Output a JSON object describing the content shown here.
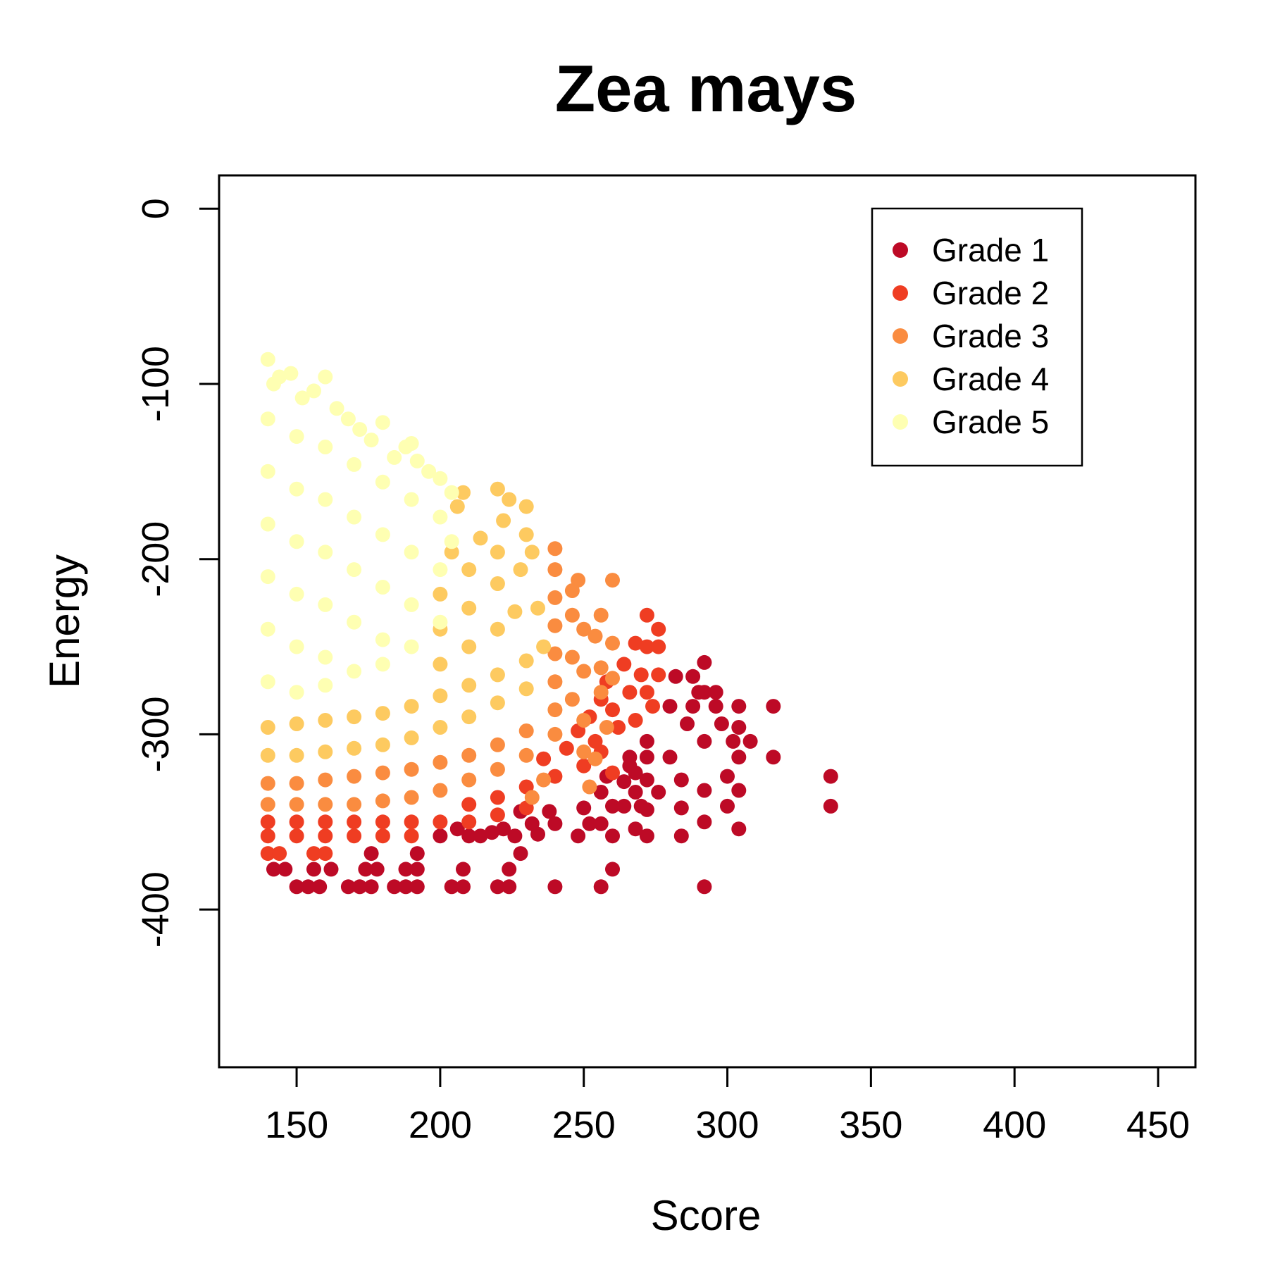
{
  "chart_data": {
    "type": "scatter",
    "title": "Zea mays",
    "xlabel": "Score",
    "ylabel": "Energy",
    "xlim": [
      123,
      463
    ],
    "ylim": [
      -490,
      19
    ],
    "xticks": [
      150,
      200,
      250,
      300,
      350,
      400,
      450
    ],
    "yticks": [
      0,
      -100,
      -200,
      -300,
      -400
    ],
    "grid": false,
    "legend_position": "top-right",
    "series": [
      {
        "name": "Grade 1",
        "color": "#bd0a26",
        "points": [
          [
            142,
            -377
          ],
          [
            146,
            -377
          ],
          [
            150,
            -387
          ],
          [
            154,
            -387
          ],
          [
            156,
            -377
          ],
          [
            158,
            -387
          ],
          [
            162,
            -377
          ],
          [
            168,
            -387
          ],
          [
            172,
            -387
          ],
          [
            174,
            -377
          ],
          [
            176,
            -387
          ],
          [
            178,
            -377
          ],
          [
            176,
            -368
          ],
          [
            184,
            -387
          ],
          [
            188,
            -387
          ],
          [
            188,
            -377
          ],
          [
            192,
            -387
          ],
          [
            192,
            -377
          ],
          [
            192,
            -368
          ],
          [
            204,
            -387
          ],
          [
            208,
            -387
          ],
          [
            208,
            -377
          ],
          [
            220,
            -387
          ],
          [
            224,
            -387
          ],
          [
            224,
            -377
          ],
          [
            228,
            -368
          ],
          [
            240,
            -387
          ],
          [
            256,
            -387
          ],
          [
            260,
            -377
          ],
          [
            200,
            -358
          ],
          [
            206,
            -354
          ],
          [
            210,
            -358
          ],
          [
            214,
            -358
          ],
          [
            218,
            -356
          ],
          [
            222,
            -354
          ],
          [
            226,
            -358
          ],
          [
            228,
            -344
          ],
          [
            232,
            -351
          ],
          [
            234,
            -357
          ],
          [
            238,
            -344
          ],
          [
            240,
            -351
          ],
          [
            248,
            -358
          ],
          [
            250,
            -342
          ],
          [
            252,
            -351
          ],
          [
            256,
            -351
          ],
          [
            256,
            -333
          ],
          [
            258,
            -324
          ],
          [
            260,
            -341
          ],
          [
            260,
            -358
          ],
          [
            264,
            -327
          ],
          [
            264,
            -341
          ],
          [
            266,
            -318
          ],
          [
            266,
            -313
          ],
          [
            268,
            -322
          ],
          [
            268,
            -333
          ],
          [
            270,
            -341
          ],
          [
            272,
            -326
          ],
          [
            272,
            -313
          ],
          [
            272,
            -304
          ],
          [
            272,
            -343
          ],
          [
            272,
            -358
          ],
          [
            276,
            -333
          ],
          [
            268,
            -354
          ],
          [
            280,
            -313
          ],
          [
            280,
            -284
          ],
          [
            282,
            -267
          ],
          [
            284,
            -326
          ],
          [
            284,
            -342
          ],
          [
            284,
            -358
          ],
          [
            286,
            -294
          ],
          [
            288,
            -284
          ],
          [
            288,
            -267
          ],
          [
            290,
            -276
          ],
          [
            292,
            -259
          ],
          [
            292,
            -276
          ],
          [
            292,
            -304
          ],
          [
            292,
            -332
          ],
          [
            292,
            -350
          ],
          [
            292,
            -387
          ],
          [
            296,
            -276
          ],
          [
            296,
            -284
          ],
          [
            298,
            -294
          ],
          [
            300,
            -324
          ],
          [
            300,
            -341
          ],
          [
            302,
            -304
          ],
          [
            304,
            -284
          ],
          [
            304,
            -296
          ],
          [
            304,
            -313
          ],
          [
            304,
            -332
          ],
          [
            304,
            -354
          ],
          [
            308,
            -304
          ],
          [
            316,
            -284
          ],
          [
            316,
            -313
          ],
          [
            336,
            -324
          ],
          [
            336,
            -341
          ]
        ]
      },
      {
        "name": "Grade 2",
        "color": "#ef3d22",
        "points": [
          [
            140,
            -358
          ],
          [
            150,
            -358
          ],
          [
            160,
            -358
          ],
          [
            170,
            -358
          ],
          [
            180,
            -358
          ],
          [
            190,
            -358
          ],
          [
            140,
            -350
          ],
          [
            150,
            -350
          ],
          [
            160,
            -350
          ],
          [
            170,
            -350
          ],
          [
            180,
            -350
          ],
          [
            190,
            -350
          ],
          [
            200,
            -350
          ],
          [
            210,
            -350
          ],
          [
            220,
            -346
          ],
          [
            230,
            -342
          ],
          [
            140,
            -368
          ],
          [
            144,
            -368
          ],
          [
            156,
            -368
          ],
          [
            160,
            -368
          ],
          [
            210,
            -340
          ],
          [
            220,
            -336
          ],
          [
            230,
            -330
          ],
          [
            240,
            -324
          ],
          [
            250,
            -318
          ],
          [
            236,
            -314
          ],
          [
            244,
            -308
          ],
          [
            248,
            -298
          ],
          [
            252,
            -290
          ],
          [
            254,
            -304
          ],
          [
            256,
            -280
          ],
          [
            258,
            -270
          ],
          [
            260,
            -286
          ],
          [
            262,
            -296
          ],
          [
            264,
            -260
          ],
          [
            266,
            -276
          ],
          [
            268,
            -292
          ],
          [
            270,
            -266
          ],
          [
            272,
            -250
          ],
          [
            272,
            -276
          ],
          [
            272,
            -232
          ],
          [
            274,
            -284
          ],
          [
            276,
            -250
          ],
          [
            276,
            -266
          ],
          [
            268,
            -248
          ],
          [
            276,
            -240
          ],
          [
            256,
            -310
          ],
          [
            260,
            -322
          ]
        ]
      },
      {
        "name": "Grade 3",
        "color": "#fa8c40",
        "points": [
          [
            140,
            -340
          ],
          [
            150,
            -340
          ],
          [
            160,
            -340
          ],
          [
            170,
            -340
          ],
          [
            180,
            -338
          ],
          [
            190,
            -336
          ],
          [
            140,
            -328
          ],
          [
            150,
            -328
          ],
          [
            160,
            -326
          ],
          [
            170,
            -324
          ],
          [
            180,
            -322
          ],
          [
            190,
            -320
          ],
          [
            200,
            -316
          ],
          [
            210,
            -312
          ],
          [
            220,
            -306
          ],
          [
            230,
            -298
          ],
          [
            200,
            -332
          ],
          [
            210,
            -326
          ],
          [
            220,
            -320
          ],
          [
            230,
            -312
          ],
          [
            240,
            -300
          ],
          [
            240,
            -286
          ],
          [
            240,
            -270
          ],
          [
            240,
            -254
          ],
          [
            240,
            -238
          ],
          [
            240,
            -222
          ],
          [
            240,
            -206
          ],
          [
            240,
            -194
          ],
          [
            246,
            -280
          ],
          [
            246,
            -256
          ],
          [
            246,
            -232
          ],
          [
            246,
            -218
          ],
          [
            248,
            -212
          ],
          [
            250,
            -240
          ],
          [
            250,
            -264
          ],
          [
            250,
            -292
          ],
          [
            250,
            -310
          ],
          [
            254,
            -244
          ],
          [
            256,
            -262
          ],
          [
            256,
            -276
          ],
          [
            256,
            -232
          ],
          [
            260,
            -212
          ],
          [
            260,
            -248
          ],
          [
            260,
            -268
          ],
          [
            258,
            -296
          ],
          [
            254,
            -314
          ],
          [
            252,
            -330
          ],
          [
            236,
            -326
          ],
          [
            232,
            -336
          ]
        ]
      },
      {
        "name": "Grade 4",
        "color": "#fdca60",
        "points": [
          [
            140,
            -312
          ],
          [
            150,
            -312
          ],
          [
            160,
            -310
          ],
          [
            170,
            -308
          ],
          [
            180,
            -306
          ],
          [
            190,
            -302
          ],
          [
            140,
            -296
          ],
          [
            150,
            -294
          ],
          [
            160,
            -292
          ],
          [
            170,
            -290
          ],
          [
            180,
            -288
          ],
          [
            190,
            -284
          ],
          [
            200,
            -278
          ],
          [
            210,
            -272
          ],
          [
            220,
            -266
          ],
          [
            230,
            -258
          ],
          [
            200,
            -296
          ],
          [
            210,
            -290
          ],
          [
            220,
            -282
          ],
          [
            230,
            -274
          ],
          [
            200,
            -260
          ],
          [
            200,
            -240
          ],
          [
            200,
            -220
          ],
          [
            210,
            -250
          ],
          [
            210,
            -228
          ],
          [
            210,
            -206
          ],
          [
            214,
            -188
          ],
          [
            220,
            -240
          ],
          [
            220,
            -214
          ],
          [
            220,
            -196
          ],
          [
            222,
            -178
          ],
          [
            224,
            -166
          ],
          [
            226,
            -230
          ],
          [
            228,
            -206
          ],
          [
            230,
            -186
          ],
          [
            230,
            -170
          ],
          [
            232,
            -196
          ],
          [
            206,
            -170
          ],
          [
            208,
            -162
          ],
          [
            220,
            -160
          ],
          [
            204,
            -196
          ],
          [
            236,
            -250
          ],
          [
            234,
            -228
          ]
        ]
      },
      {
        "name": "Grade 5",
        "color": "#feffb2",
        "points": [
          [
            140,
            -86
          ],
          [
            142,
            -100
          ],
          [
            144,
            -96
          ],
          [
            148,
            -94
          ],
          [
            152,
            -108
          ],
          [
            156,
            -104
          ],
          [
            160,
            -96
          ],
          [
            164,
            -114
          ],
          [
            168,
            -120
          ],
          [
            172,
            -126
          ],
          [
            176,
            -132
          ],
          [
            180,
            -122
          ],
          [
            184,
            -142
          ],
          [
            188,
            -136
          ],
          [
            190,
            -134
          ],
          [
            192,
            -144
          ],
          [
            196,
            -150
          ],
          [
            200,
            -154
          ],
          [
            204,
            -162
          ],
          [
            140,
            -120
          ],
          [
            140,
            -150
          ],
          [
            140,
            -180
          ],
          [
            140,
            -210
          ],
          [
            140,
            -240
          ],
          [
            140,
            -270
          ],
          [
            150,
            -130
          ],
          [
            150,
            -160
          ],
          [
            150,
            -190
          ],
          [
            150,
            -220
          ],
          [
            150,
            -250
          ],
          [
            150,
            -276
          ],
          [
            160,
            -136
          ],
          [
            160,
            -166
          ],
          [
            160,
            -196
          ],
          [
            160,
            -226
          ],
          [
            160,
            -256
          ],
          [
            160,
            -272
          ],
          [
            170,
            -146
          ],
          [
            170,
            -176
          ],
          [
            170,
            -206
          ],
          [
            170,
            -236
          ],
          [
            170,
            -264
          ],
          [
            180,
            -156
          ],
          [
            180,
            -186
          ],
          [
            180,
            -216
          ],
          [
            180,
            -246
          ],
          [
            180,
            -260
          ],
          [
            190,
            -166
          ],
          [
            190,
            -196
          ],
          [
            190,
            -226
          ],
          [
            190,
            -250
          ],
          [
            200,
            -176
          ],
          [
            200,
            -206
          ],
          [
            200,
            -236
          ],
          [
            204,
            -190
          ]
        ]
      }
    ]
  }
}
